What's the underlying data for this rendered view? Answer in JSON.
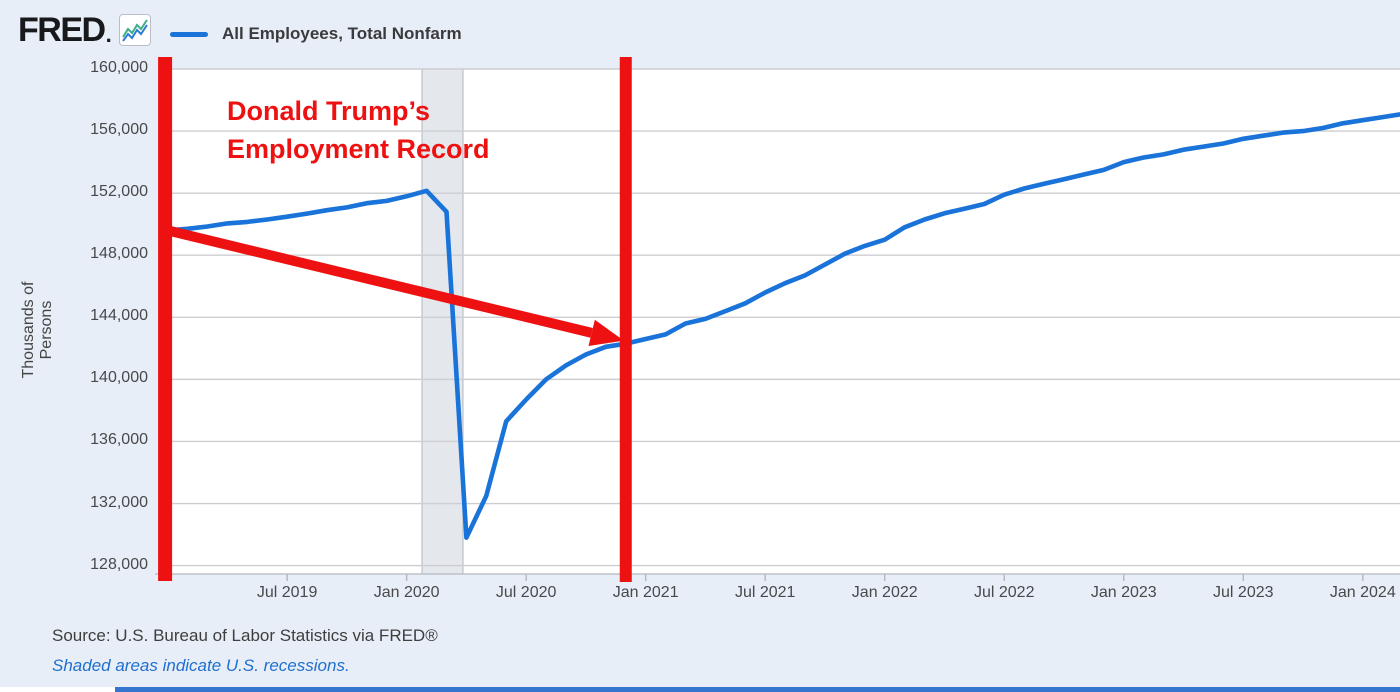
{
  "header": {
    "logo_text": "FRED",
    "logo_dot": ".",
    "legend": {
      "series_label": "All Employees, Total Nonfarm",
      "swatch_color": "#1a73d9"
    }
  },
  "chart_data": {
    "type": "line",
    "series_name": "All Employees, Total Nonfarm",
    "ylabel": "Thousands of Persons",
    "ylim": [
      128000,
      160000
    ],
    "x_range": [
      "2019-01",
      "2024-03"
    ],
    "grid": "horizontal",
    "line_color": "#1a73d9",
    "months": [
      "2019-01",
      "2019-02",
      "2019-03",
      "2019-04",
      "2019-05",
      "2019-06",
      "2019-07",
      "2019-08",
      "2019-09",
      "2019-10",
      "2019-11",
      "2019-12",
      "2020-01",
      "2020-02",
      "2020-03",
      "2020-04",
      "2020-05",
      "2020-06",
      "2020-07",
      "2020-08",
      "2020-09",
      "2020-10",
      "2020-11",
      "2020-12",
      "2021-01",
      "2021-02",
      "2021-03",
      "2021-04",
      "2021-05",
      "2021-06",
      "2021-07",
      "2021-08",
      "2021-09",
      "2021-10",
      "2021-11",
      "2021-12",
      "2022-01",
      "2022-02",
      "2022-03",
      "2022-04",
      "2022-05",
      "2022-06",
      "2022-07",
      "2022-08",
      "2022-09",
      "2022-10",
      "2022-11",
      "2022-12",
      "2023-01",
      "2023-02",
      "2023-03",
      "2023-04",
      "2023-05",
      "2023-06",
      "2023-07",
      "2023-08",
      "2023-09",
      "2023-10",
      "2023-11",
      "2023-12",
      "2024-01",
      "2024-02",
      "2024-03"
    ],
    "values": [
      149600,
      149700,
      149850,
      150050,
      150150,
      150300,
      150480,
      150680,
      150900,
      151080,
      151350,
      151500,
      151800,
      152150,
      150800,
      129800,
      132500,
      137300,
      138700,
      140000,
      140900,
      141600,
      142100,
      142300,
      142600,
      142900,
      143600,
      143900,
      144400,
      144900,
      145600,
      146200,
      146700,
      147400,
      148100,
      148600,
      149000,
      149800,
      150300,
      150700,
      151000,
      151300,
      151900,
      152300,
      152600,
      152900,
      153200,
      153500,
      154000,
      154300,
      154500,
      154800,
      155000,
      155200,
      155500,
      155700,
      155900,
      156000,
      156200,
      156500,
      156700,
      156900,
      157100
    ],
    "y_ticks": [
      {
        "value": 160000,
        "label": "160,000"
      },
      {
        "value": 156000,
        "label": "156,000"
      },
      {
        "value": 152000,
        "label": "152,000"
      },
      {
        "value": 148000,
        "label": "148,000"
      },
      {
        "value": 144000,
        "label": "144,000"
      },
      {
        "value": 140000,
        "label": "140,000"
      },
      {
        "value": 136000,
        "label": "136,000"
      },
      {
        "value": 132000,
        "label": "132,000"
      },
      {
        "value": 128000,
        "label": "128,000"
      }
    ],
    "x_ticks": [
      {
        "label": "Jul 2019",
        "month": "2019-07"
      },
      {
        "label": "Jan 2020",
        "month": "2020-01"
      },
      {
        "label": "Jul 2020",
        "month": "2020-07"
      },
      {
        "label": "Jan 2021",
        "month": "2021-01"
      },
      {
        "label": "Jul 2021",
        "month": "2021-07"
      },
      {
        "label": "Jan 2022",
        "month": "2022-01"
      },
      {
        "label": "Jul 2022",
        "month": "2022-07"
      },
      {
        "label": "Jan 2023",
        "month": "2023-01"
      },
      {
        "label": "Jul 2023",
        "month": "2023-07"
      },
      {
        "label": "Jan 2024",
        "month": "2024-01"
      }
    ],
    "recession_band": {
      "from": "2020-02",
      "to": "2020-04",
      "fill": "#e4e7ec",
      "border": "#c6cad1"
    }
  },
  "annotations": {
    "label_line1": "Donald Trump’s",
    "label_line2": "Employment Record",
    "color": "#ee1111",
    "term_start_line_month": "2019-01",
    "term_end_line_month": "2020-12",
    "arrow": {
      "from_month": "2019-01",
      "from_value": 149600,
      "to_month": "2020-12",
      "to_value": 142400
    }
  },
  "footer": {
    "source_text": "Source: U.S. Bureau of Labor Statistics via FRED®",
    "recession_note": "Shaded areas indicate U.S. recessions."
  }
}
